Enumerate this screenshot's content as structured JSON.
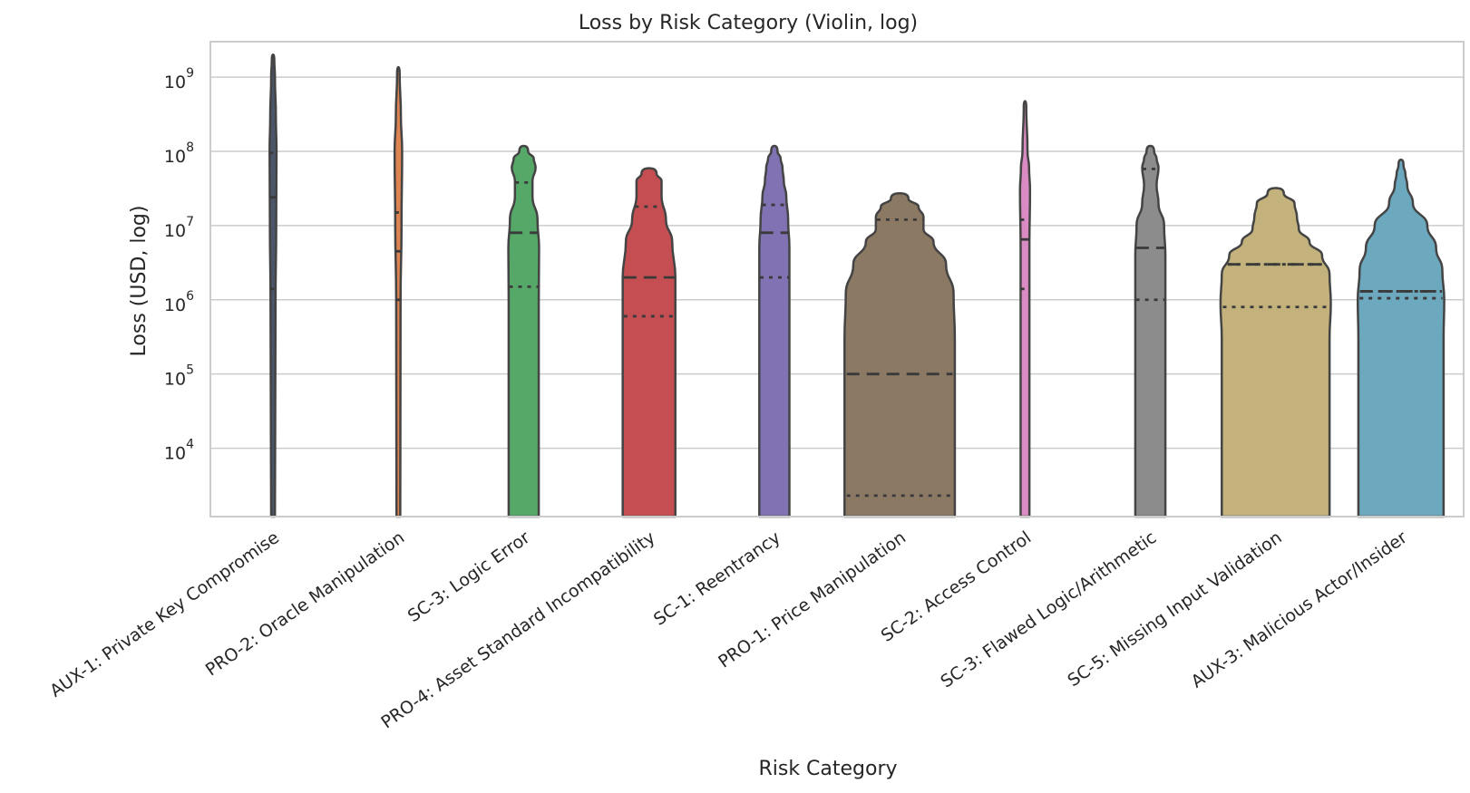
{
  "chart_data": {
    "type": "violin",
    "title": "Loss by Risk Category (Violin, log)",
    "xlabel": "Risk Category",
    "ylabel": "Loss (USD, log)",
    "yscale": "log",
    "ylim": [
      1200,
      3000000000
    ],
    "yticks": [
      {
        "value": 10000,
        "base": "10",
        "exp": "4"
      },
      {
        "value": 100000,
        "base": "10",
        "exp": "5"
      },
      {
        "value": 1000000,
        "base": "10",
        "exp": "6"
      },
      {
        "value": 10000000,
        "base": "10",
        "exp": "7"
      },
      {
        "value": 100000000,
        "base": "10",
        "exp": "8"
      },
      {
        "value": 1000000000,
        "base": "10",
        "exp": "9"
      }
    ],
    "grid": true,
    "inner": "quartile",
    "categories": [
      {
        "label": "AUX-1: Private Key Compromise",
        "color": "#4c566a",
        "quartiles": [
          1400000,
          24000000,
          95000000
        ],
        "profile": [
          [
            1200,
            0.03
          ],
          [
            1000000,
            0.04
          ],
          [
            10000000,
            0.05
          ],
          [
            100000000,
            0.055
          ],
          [
            300000000,
            0.045
          ],
          [
            1000000000,
            0.03
          ],
          [
            1700000000,
            0.02
          ]
        ]
      },
      {
        "label": "PRO-2: Oracle Manipulation",
        "color": "#dd8452",
        "quartiles": [
          1000000,
          4500000,
          15000000
        ],
        "profile": [
          [
            1200,
            0.03
          ],
          [
            1000000,
            0.035
          ],
          [
            10000000,
            0.05
          ],
          [
            100000000,
            0.06
          ],
          [
            300000000,
            0.04
          ],
          [
            1150000000,
            0.02
          ]
        ]
      },
      {
        "label": "SC-3: Logic Error",
        "color": "#55a868",
        "quartiles": [
          1500000,
          8000000,
          38000000
        ],
        "profile": [
          [
            1200,
            0.24
          ],
          [
            1000000,
            0.24
          ],
          [
            5000000,
            0.245
          ],
          [
            12000000,
            0.22
          ],
          [
            25000000,
            0.14
          ],
          [
            40000000,
            0.14
          ],
          [
            60000000,
            0.19
          ],
          [
            80000000,
            0.16
          ],
          [
            100000000,
            0.07
          ]
        ]
      },
      {
        "label": "PRO-4: Asset Standard Incompatibility",
        "color": "#c44e52",
        "quartiles": [
          600000,
          2000000,
          18000000
        ],
        "profile": [
          [
            1200,
            0.42
          ],
          [
            2000000,
            0.42
          ],
          [
            6000000,
            0.37
          ],
          [
            12000000,
            0.27
          ],
          [
            25000000,
            0.2
          ],
          [
            40000000,
            0.2
          ],
          [
            50000000,
            0.12
          ]
        ]
      },
      {
        "label": "SC-1: Reentrancy",
        "color": "#8172b3",
        "quartiles": [
          2000000,
          8000000,
          19000000
        ],
        "profile": [
          [
            1200,
            0.24
          ],
          [
            5000000,
            0.24
          ],
          [
            12000000,
            0.22
          ],
          [
            25000000,
            0.19
          ],
          [
            40000000,
            0.15
          ],
          [
            60000000,
            0.13
          ],
          [
            80000000,
            0.1
          ],
          [
            100000000,
            0.05
          ]
        ]
      },
      {
        "label": "PRO-1: Price Manipulation",
        "color": "#8c7964",
        "quartiles": [
          2300,
          100000,
          12000000
        ],
        "profile": [
          [
            1200,
            0.88
          ],
          [
            300000,
            0.88
          ],
          [
            1200000,
            0.86
          ],
          [
            3000000,
            0.74
          ],
          [
            6000000,
            0.54
          ],
          [
            9000000,
            0.38
          ],
          [
            13000000,
            0.38
          ],
          [
            18000000,
            0.3
          ],
          [
            23000000,
            0.14
          ]
        ]
      },
      {
        "label": "SC-2: Access Control",
        "color": "#da8bc3",
        "quartiles": [
          1400000,
          6500000,
          12000000
        ],
        "profile": [
          [
            1200,
            0.07
          ],
          [
            5000000,
            0.07
          ],
          [
            30000000,
            0.08
          ],
          [
            60000000,
            0.065
          ],
          [
            100000000,
            0.04
          ],
          [
            400000000,
            0.02
          ]
        ]
      },
      {
        "label": "SC-3: Flawed Logic/Arithmetic",
        "color": "#8c8c8c",
        "quartiles": [
          1000000,
          5000000,
          58000000
        ],
        "profile": [
          [
            1200,
            0.24
          ],
          [
            4000000,
            0.24
          ],
          [
            10000000,
            0.22
          ],
          [
            20000000,
            0.13
          ],
          [
            35000000,
            0.1
          ],
          [
            60000000,
            0.13
          ],
          [
            80000000,
            0.1
          ],
          [
            100000000,
            0.06
          ]
        ]
      },
      {
        "label": "SC-5: Missing Input Validation",
        "color": "#c4b27c",
        "quartiles": [
          800000,
          3000000,
          3000000
        ],
        "profile": [
          [
            1200,
            0.86
          ],
          [
            300000,
            0.86
          ],
          [
            900000,
            0.88
          ],
          [
            2200000,
            0.86
          ],
          [
            4000000,
            0.74
          ],
          [
            6000000,
            0.54
          ],
          [
            9000000,
            0.37
          ],
          [
            13000000,
            0.34
          ],
          [
            20000000,
            0.3
          ],
          [
            27000000,
            0.13
          ]
        ]
      },
      {
        "label": "AUX-3: Malicious Actor/Insider",
        "color": "#6ca9bf",
        "quartiles": [
          1050000,
          1300000,
          1300000
        ],
        "profile": [
          [
            1200,
            0.68
          ],
          [
            300000,
            0.68
          ],
          [
            1000000,
            0.69
          ],
          [
            2500000,
            0.66
          ],
          [
            5000000,
            0.56
          ],
          [
            10000000,
            0.42
          ],
          [
            20000000,
            0.19
          ],
          [
            35000000,
            0.1
          ],
          [
            50000000,
            0.07
          ],
          [
            65000000,
            0.04
          ]
        ]
      }
    ]
  }
}
